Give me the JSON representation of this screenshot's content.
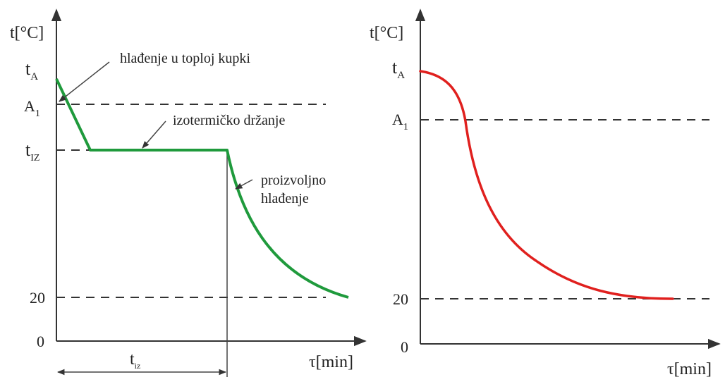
{
  "left_panel": {
    "y_axis_label": "t[°C]",
    "x_axis_label": "τ[min]",
    "y_ticks": {
      "tA": {
        "main": "t",
        "sub": "A"
      },
      "A1": {
        "main": "A",
        "sub": "1"
      },
      "tIZ": {
        "main": "t",
        "sub": "IZ"
      },
      "twenty": "20",
      "zero": "0"
    },
    "duration_label": {
      "main": "t",
      "sub": "iz"
    },
    "annotations": {
      "warm_bath": "hlađenje u toploj kupki",
      "isothermal": "izotermičko držanje",
      "arbitrary_line1": "proizvoljno",
      "arbitrary_line2": "hlađenje"
    },
    "curve_color": "#1f9a3c"
  },
  "right_panel": {
    "y_axis_label": "t[°C]",
    "x_axis_label": "τ[min]",
    "y_ticks": {
      "tA": {
        "main": "t",
        "sub": "A"
      },
      "A1": {
        "main": "A",
        "sub": "1"
      },
      "twenty": "20",
      "zero": "0"
    },
    "curve_color": "#e0201e"
  }
}
